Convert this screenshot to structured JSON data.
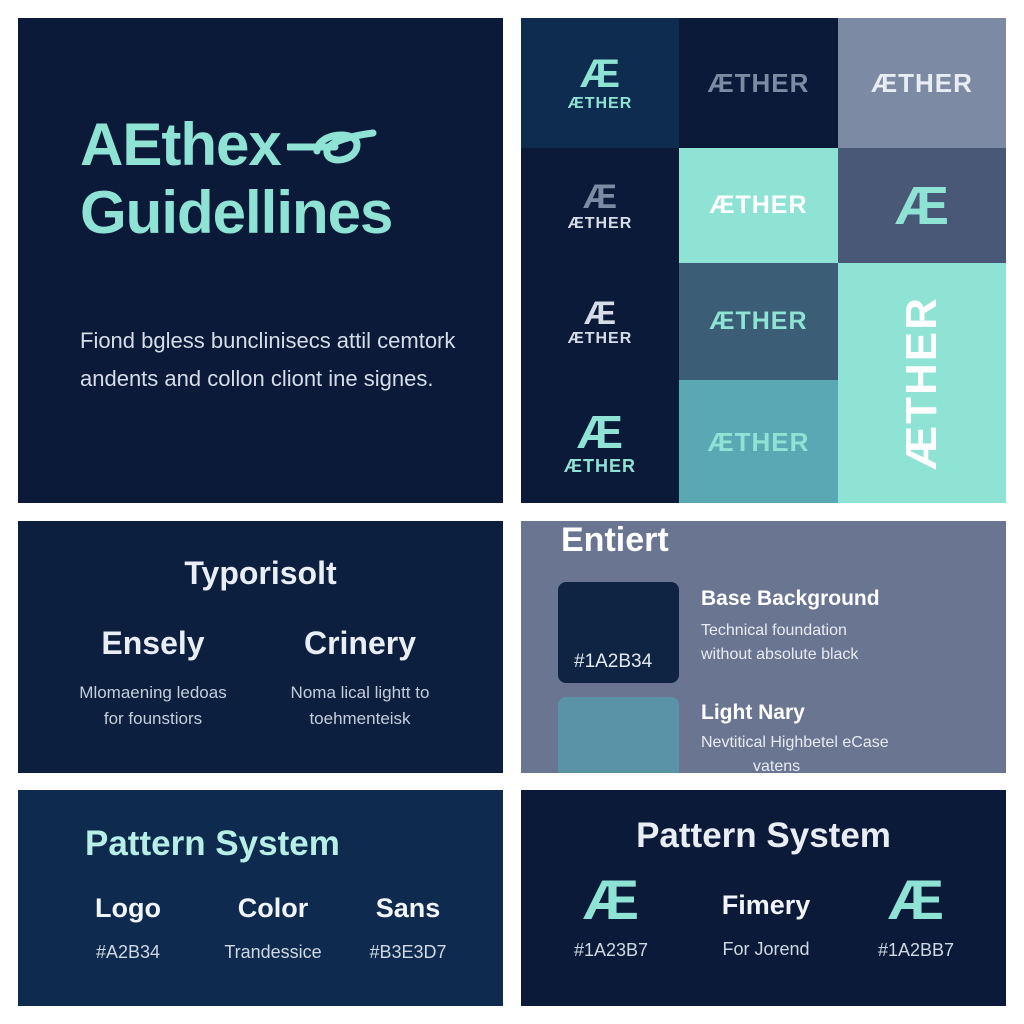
{
  "hero": {
    "title_line1": "AEthex",
    "title_line2": "Guidellines",
    "description": "Fiond bgless bunclinisecs attil cemtork andents and collon cliont ine signes."
  },
  "logo_grid": {
    "monogram": "Æ",
    "wordmark": "ÆTHER",
    "colors": {
      "navy": "#0b1a38",
      "deep_blue": "#0d2c4f",
      "slate": "#7d8aa3",
      "mint": "#8fe3d4",
      "steel": "#3b5d75",
      "teal": "#5aa8b4",
      "dusk": "#4a5878"
    }
  },
  "typography": {
    "title": "Typorisolt",
    "fonts": [
      {
        "name": "Ensely",
        "note_line1": "Mlomaening ledoas",
        "note_line2": "for founstiors"
      },
      {
        "name": "Crinery",
        "note_line1": "Noma lical lightt to",
        "note_line2": "toehmenteisk"
      }
    ]
  },
  "colors": {
    "title": "Entiert",
    "items": [
      {
        "name": "Base Background",
        "hex": "#1A2B34",
        "note_line1": "Technical foundation",
        "note_line2": "without absolute black",
        "swatch": "#0f2443"
      },
      {
        "name": "Light Nary",
        "hex": "",
        "note_line1": "Nevtitical Highbetel eCase",
        "note_line2": "vatens",
        "swatch": "#5a92a8"
      }
    ]
  },
  "pattern_left": {
    "title": "Pattern System",
    "items": [
      {
        "label": "Logo",
        "value": "#A2B34"
      },
      {
        "label": "Color",
        "value": "Trandessice"
      },
      {
        "label": "Sans",
        "value": "#B3E3D7"
      }
    ]
  },
  "pattern_right": {
    "title": "Pattern System",
    "items": [
      {
        "mono": "Æ",
        "value": "#1A23B7"
      },
      {
        "label": "Fimery",
        "value": "For Jorend"
      },
      {
        "mono": "Æ",
        "value": "#1A2BB7"
      }
    ]
  }
}
